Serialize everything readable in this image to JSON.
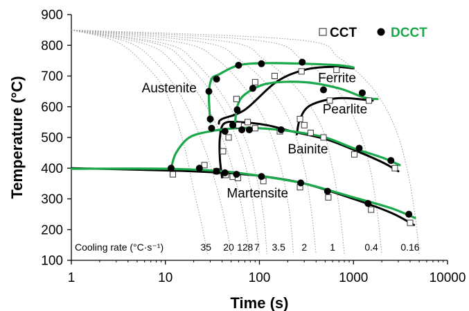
{
  "chart_data": {
    "type": "scatter",
    "xscale": "log",
    "xlim": [
      1,
      10000
    ],
    "ylim": [
      100,
      900
    ],
    "xticks": [
      "1",
      "10",
      "100",
      "1000",
      "10000"
    ],
    "yticks": [
      "100",
      "200",
      "300",
      "400",
      "500",
      "600",
      "700",
      "800",
      "900"
    ],
    "xlabel": "Time (s)",
    "ylabel": "Temperature (°C)",
    "grid": false,
    "legend_position": "top-right",
    "colors": {
      "CCT": "#000000",
      "DCCT": "#1aa84a",
      "cooling_curve": "#9a9a9a"
    },
    "region_labels": [
      "Austenite",
      "Ferrite",
      "Pearlite",
      "Bainite",
      "Martensite"
    ],
    "cooling_rate_title": "Cooling rate (°C·s⁻¹)",
    "cooling_rates": [
      "35",
      "20",
      "12",
      "8",
      "7",
      "3.5",
      "2",
      "1",
      "0.4",
      "0.16"
    ],
    "cooling_curves": [
      {
        "label": "35",
        "points": [
          [
            1,
            850
          ],
          [
            3,
            812
          ],
          [
            6,
            738
          ],
          [
            10,
            650
          ],
          [
            15,
            500
          ],
          [
            20,
            330
          ],
          [
            25,
            200
          ],
          [
            28,
            120
          ]
        ]
      },
      {
        "label": "20",
        "points": [
          [
            1,
            850
          ],
          [
            4,
            810
          ],
          [
            8,
            742
          ],
          [
            15,
            630
          ],
          [
            25,
            480
          ],
          [
            35,
            340
          ],
          [
            45,
            200
          ],
          [
            50,
            120
          ]
        ]
      },
      {
        "label": "12",
        "points": [
          [
            1,
            850
          ],
          [
            6,
            805
          ],
          [
            12,
            745
          ],
          [
            25,
            620
          ],
          [
            40,
            500
          ],
          [
            55,
            370
          ],
          [
            70,
            220
          ],
          [
            78,
            120
          ]
        ]
      },
      {
        "label": "8",
        "points": [
          [
            1,
            850
          ],
          [
            8,
            805
          ],
          [
            16,
            748
          ],
          [
            35,
            625
          ],
          [
            55,
            510
          ],
          [
            75,
            380
          ],
          [
            90,
            240
          ],
          [
            100,
            120
          ]
        ]
      },
      {
        "label": "7",
        "points": [
          [
            1,
            850
          ],
          [
            10,
            805
          ],
          [
            20,
            750
          ],
          [
            40,
            640
          ],
          [
            65,
            520
          ],
          [
            90,
            390
          ],
          [
            110,
            250
          ],
          [
            120,
            120
          ]
        ]
      },
      {
        "label": "3.5",
        "points": [
          [
            1,
            850
          ],
          [
            15,
            808
          ],
          [
            35,
            755
          ],
          [
            70,
            660
          ],
          [
            120,
            540
          ],
          [
            170,
            400
          ],
          [
            210,
            250
          ],
          [
            230,
            120
          ]
        ]
      },
      {
        "label": "2",
        "points": [
          [
            1,
            850
          ],
          [
            25,
            810
          ],
          [
            60,
            755
          ],
          [
            130,
            660
          ],
          [
            220,
            540
          ],
          [
            300,
            400
          ],
          [
            360,
            250
          ],
          [
            400,
            120
          ]
        ]
      },
      {
        "label": "1",
        "points": [
          [
            1,
            850
          ],
          [
            45,
            812
          ],
          [
            110,
            755
          ],
          [
            250,
            660
          ],
          [
            450,
            540
          ],
          [
            600,
            400
          ],
          [
            720,
            250
          ],
          [
            800,
            120
          ]
        ]
      },
      {
        "label": "0.4",
        "points": [
          [
            1,
            850
          ],
          [
            100,
            815
          ],
          [
            280,
            755
          ],
          [
            650,
            660
          ],
          [
            1100,
            540
          ],
          [
            1500,
            400
          ],
          [
            1800,
            250
          ],
          [
            2000,
            120
          ]
        ]
      },
      {
        "label": "0.16",
        "points": [
          [
            1,
            850
          ],
          [
            250,
            818
          ],
          [
            700,
            760
          ],
          [
            1600,
            660
          ],
          [
            2700,
            540
          ],
          [
            3700,
            400
          ],
          [
            4500,
            250
          ],
          [
            5000,
            120
          ]
        ]
      }
    ],
    "series": [
      {
        "name": "CCT",
        "marker": "open-square",
        "points": [
          [
            12,
            380
          ],
          [
            26,
            410
          ],
          [
            35,
            390
          ],
          [
            44,
            378
          ],
          [
            52,
            372
          ],
          [
            59,
            368
          ],
          [
            110,
            358
          ],
          [
            270,
            338
          ],
          [
            540,
            305
          ],
          [
            1540,
            265
          ],
          [
            4000,
            222
          ],
          [
            41,
            455
          ],
          [
            47,
            500
          ],
          [
            60,
            540
          ],
          [
            75,
            550
          ],
          [
            90,
            530
          ],
          [
            165,
            520
          ],
          [
            300,
            540
          ],
          [
            350,
            515
          ],
          [
            480,
            500
          ],
          [
            1020,
            445
          ],
          [
            2750,
            400
          ],
          [
            57,
            625
          ],
          [
            90,
            680
          ],
          [
            145,
            700
          ],
          [
            280,
            715
          ],
          [
            660,
            720
          ],
          [
            270,
            560
          ],
          [
            560,
            620
          ],
          [
            1460,
            620
          ]
        ],
        "curves": [
          [
            [
              1,
              400
            ],
            [
              12,
              392
            ],
            [
              40,
              385
            ],
            [
              100,
              375
            ],
            [
              300,
              350
            ],
            [
              1000,
              300
            ],
            [
              2500,
              255
            ],
            [
              4400,
              215
            ]
          ],
          [
            [
              40,
              370
            ],
            [
              38,
              430
            ],
            [
              38,
              500
            ],
            [
              42,
              545
            ],
            [
              60,
              550
            ],
            [
              120,
              540
            ],
            [
              220,
              520
            ],
            [
              500,
              495
            ],
            [
              1000,
              460
            ],
            [
              2000,
              420
            ],
            [
              3000,
              390
            ]
          ],
          [
            [
              37,
              545
            ],
            [
              40,
              560
            ],
            [
              70,
              590
            ],
            [
              150,
              680
            ],
            [
              300,
              720
            ],
            [
              600,
              730
            ],
            [
              1000,
              725
            ]
          ],
          [
            [
              250,
              510
            ],
            [
              270,
              560
            ],
            [
              350,
              605
            ],
            [
              700,
              628
            ],
            [
              1600,
              620
            ]
          ]
        ]
      },
      {
        "name": "DCCT",
        "marker": "filled-circle",
        "points": [
          [
            11.5,
            400
          ],
          [
            23,
            400
          ],
          [
            35,
            390
          ],
          [
            43,
            385
          ],
          [
            57,
            380
          ],
          [
            105,
            373
          ],
          [
            275,
            352
          ],
          [
            530,
            325
          ],
          [
            1430,
            285
          ],
          [
            3880,
            250
          ],
          [
            29,
            650
          ],
          [
            30,
            560
          ],
          [
            31,
            530
          ],
          [
            35,
            690
          ],
          [
            43,
            520
          ],
          [
            52,
            540
          ],
          [
            58,
            590
          ],
          [
            60,
            735
          ],
          [
            65,
            525
          ],
          [
            78,
            525
          ],
          [
            85,
            660
          ],
          [
            105,
            740
          ],
          [
            170,
            525
          ],
          [
            285,
            745
          ],
          [
            480,
            655
          ],
          [
            1240,
            645
          ],
          [
            2500,
            425
          ],
          [
            1150,
            465
          ]
        ],
        "curves": [
          [
            [
              1,
              398
            ],
            [
              10,
              398
            ],
            [
              40,
              390
            ],
            [
              100,
              375
            ],
            [
              300,
              350
            ],
            [
              1000,
              305
            ],
            [
              2500,
              270
            ],
            [
              4500,
              238
            ]
          ],
          [
            [
              11.5,
              400
            ],
            [
              13,
              450
            ],
            [
              18,
              500
            ],
            [
              30,
              520
            ],
            [
              55,
              530
            ],
            [
              100,
              530
            ],
            [
              220,
              520
            ],
            [
              500,
              500
            ],
            [
              1000,
              465
            ],
            [
              2000,
              435
            ],
            [
              3100,
              410
            ]
          ],
          [
            [
              30,
              550
            ],
            [
              29,
              640
            ],
            [
              31,
              690
            ],
            [
              37,
              705
            ],
            [
              60,
              735
            ],
            [
              120,
              742
            ],
            [
              300,
              740
            ],
            [
              700,
              735
            ],
            [
              1000,
              728
            ]
          ],
          [
            [
              55,
              540
            ],
            [
              58,
              600
            ],
            [
              70,
              640
            ],
            [
              120,
              675
            ],
            [
              300,
              680
            ],
            [
              700,
              660
            ],
            [
              1300,
              630
            ],
            [
              1800,
              625
            ]
          ]
        ]
      }
    ]
  }
}
